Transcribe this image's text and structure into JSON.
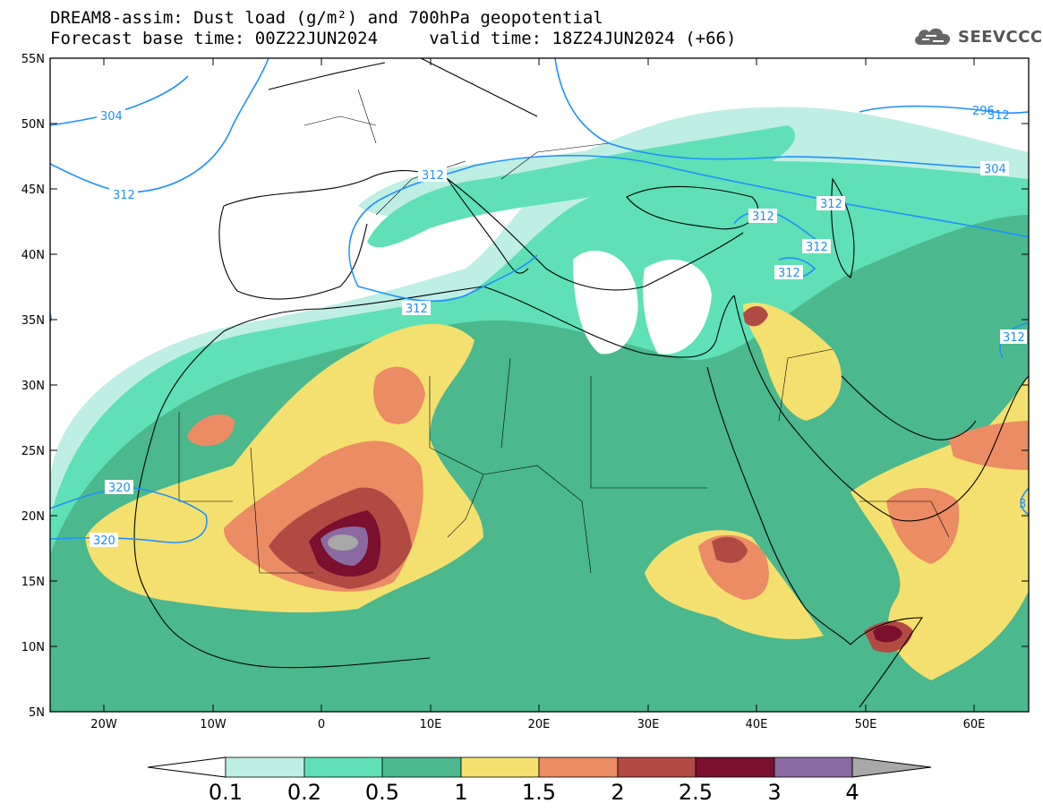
{
  "title": {
    "line1": "DREAM8-assim: Dust load (g/m²) and 700hPa geopotential",
    "line2": "Forecast base time: 00Z22JUN2024     valid time: 18Z24JUN2024 (+66)"
  },
  "logo": {
    "text": "SEEVCCC",
    "icon": "cloud-icon"
  },
  "axes": {
    "lat_labels": [
      "55N",
      "50N",
      "45N",
      "40N",
      "35N",
      "30N",
      "25N",
      "20N",
      "15N",
      "10N",
      "5N"
    ],
    "lon_labels": [
      "20W",
      "10W",
      "0",
      "10E",
      "20E",
      "30E",
      "40E",
      "50E",
      "60E"
    ]
  },
  "contour_labels": [
    "304",
    "312",
    "312",
    "312",
    "312",
    "312",
    "312",
    "312",
    "320",
    "320",
    "304",
    "296",
    "312",
    "312",
    "3"
  ],
  "colorbar": {
    "labels": [
      "0.1",
      "0.2",
      "0.5",
      "1",
      "1.5",
      "2",
      "2.5",
      "3",
      "4"
    ],
    "colors": [
      "#bfeee4",
      "#5fe0b6",
      "#4bb88e",
      "#f4e06e",
      "#eb8c64",
      "#b24a44",
      "#7a0f2e",
      "#8b6aa2",
      "#a8a8a8"
    ]
  },
  "colors": {
    "geopotential_line": "#1e90ff",
    "coastline": "#000000"
  }
}
